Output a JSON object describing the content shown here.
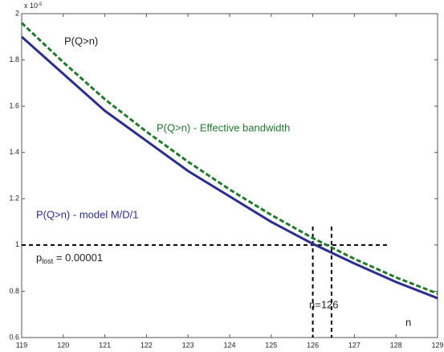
{
  "chart_data": {
    "type": "line",
    "multiplier": {
      "base": "x 10",
      "exponent": "-5"
    },
    "x": [
      119,
      120,
      121,
      122,
      123,
      124,
      125,
      126,
      127,
      128,
      129
    ],
    "series": [
      {
        "name": "P(Q>n) - model M/D/1",
        "color": "#2b2e8f",
        "dash": false,
        "values": [
          1.9,
          1.74,
          1.58,
          1.45,
          1.32,
          1.21,
          1.1,
          1.005,
          0.92,
          0.84,
          0.77
        ]
      },
      {
        "name": "P(Q>n) - Effective bandwidth",
        "color": "#1f7a2a",
        "dash": true,
        "values": [
          1.96,
          1.79,
          1.63,
          1.49,
          1.36,
          1.24,
          1.13,
          1.03,
          0.94,
          0.86,
          0.79
        ]
      }
    ],
    "xlim": [
      119,
      129
    ],
    "xticks": [
      119,
      120,
      121,
      122,
      123,
      124,
      125,
      126,
      127,
      128,
      129
    ],
    "ylim": [
      0.6,
      2
    ],
    "yticks": [
      0.6,
      0.8,
      1,
      1.2,
      1.4,
      1.6,
      1.8,
      2
    ],
    "reference_lines": {
      "y": 1,
      "x": [
        126,
        126.45
      ]
    },
    "annotations": {
      "top": "P(Q>n)",
      "n_label": "n=126",
      "axis_n": "n",
      "plost": {
        "p": "p",
        "sub": "lost",
        "rest": " = 0.00001"
      }
    }
  }
}
